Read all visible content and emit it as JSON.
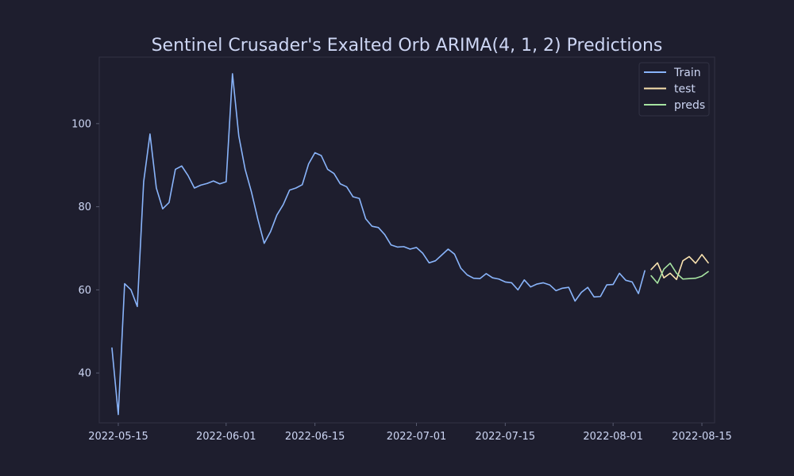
{
  "chart_data": {
    "type": "line",
    "title": "Sentinel Crusader's Exalted Orb ARIMA(4, 1, 2) Predictions",
    "xlabel": "",
    "ylabel": "",
    "x_type": "date",
    "xlim": [
      "2022-05-12",
      "2022-08-17"
    ],
    "ylim": [
      28,
      116
    ],
    "x_ticks": [
      "2022-05-15",
      "2022-06-01",
      "2022-06-15",
      "2022-07-01",
      "2022-07-15",
      "2022-08-01",
      "2022-08-15"
    ],
    "y_ticks": [
      40,
      60,
      80,
      100
    ],
    "grid": false,
    "legend_position": "top-right",
    "series": [
      {
        "name": "Train",
        "color": "#89b4fa",
        "start_date": "2022-05-14",
        "values": [
          46,
          30,
          61.5,
          60,
          56,
          86,
          97.5,
          84.5,
          79.5,
          81,
          89,
          89.8,
          87.5,
          84.5,
          85.2,
          85.6,
          86.2,
          85.5,
          86.0,
          112,
          97,
          89,
          83.5,
          77,
          71.2,
          74,
          78,
          80.5,
          84,
          84.5,
          85.3,
          90.3,
          93,
          92.3,
          89,
          88,
          85.5,
          84.8,
          82.4,
          82,
          77.1,
          75.3,
          75,
          73.3,
          70.8,
          70.3,
          70.4,
          69.8,
          70.2,
          68.8,
          66.5,
          67.0,
          68.4,
          69.8,
          68.6,
          65.2,
          63.6,
          62.8,
          62.7,
          63.9,
          62.9,
          62.6,
          61.9,
          61.7,
          60.0,
          62.4,
          60.7,
          61.4,
          61.7,
          61.2,
          59.8,
          60.4,
          60.6,
          57.3,
          59.4,
          60.6,
          58.3,
          58.4,
          61.2,
          61.3,
          64.0,
          62.3,
          61.9,
          59.1,
          64.6
        ]
      },
      {
        "name": "test",
        "color": "#f9e2af",
        "start_date": "2022-08-07",
        "values": [
          64.9,
          66.5,
          62.9,
          64.0,
          62.5,
          67.0,
          68.0,
          66.4,
          68.5,
          66.5
        ]
      },
      {
        "name": "preds",
        "color": "#a6e3a1",
        "start_date": "2022-08-07",
        "values": [
          63.4,
          61.6,
          65.0,
          66.4,
          64.0,
          62.6,
          62.7,
          62.8,
          63.3,
          64.4
        ]
      }
    ]
  },
  "colors": {
    "background": "#1e1e2e",
    "axes_background": "#1e1e2e",
    "axes_edge": "#313244",
    "text": "#cdd6f4"
  }
}
